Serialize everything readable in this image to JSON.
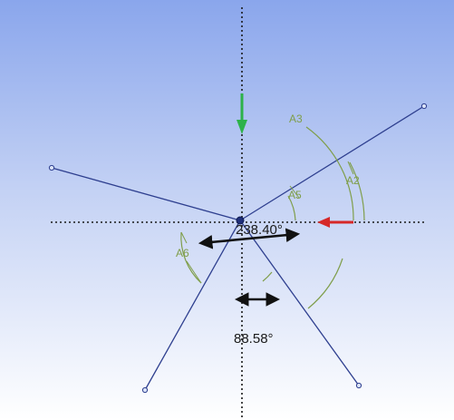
{
  "canvas": {
    "background_top": "#8aa6ec",
    "background_bottom": "#ffffff",
    "sketch_line_color": "#2e3f8f",
    "axis_color": "#1a1a1a",
    "dimension_color": "#7f9e4a",
    "arrow_color": "#111111"
  },
  "axes": {
    "y_arrow_color": "#2db24a",
    "x_arrow_color": "#d62828"
  },
  "dimensions": {
    "angle_top": "238.40°",
    "angle_bottom": "88.58°"
  },
  "angle_labels": {
    "a2": "A2",
    "a3": "A3",
    "a5": "A5",
    "a6": "A6"
  }
}
